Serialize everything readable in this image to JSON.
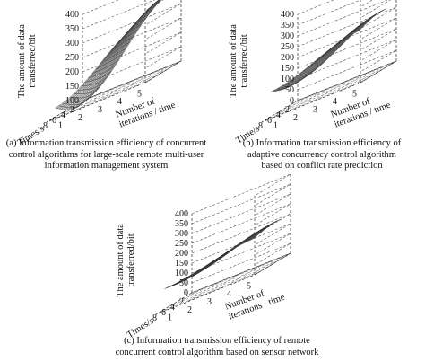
{
  "chart_data": [
    {
      "type": "surface",
      "panel_id": "a",
      "caption": [
        "(a) Information transmission efficiency of concurrent",
        "control algorithms for large-scale remote multi-user",
        "information management system"
      ],
      "zlabel": [
        "The amount of data",
        "transferred/bit"
      ],
      "xlabel": "Times/s",
      "ylabel": [
        "Number of",
        "iterations / time"
      ],
      "z_ticks": [
        100,
        150,
        200,
        250,
        300,
        350,
        400
      ],
      "x_ticks": [
        2,
        4,
        6,
        8
      ],
      "y_ticks": [
        1,
        2,
        3,
        4,
        5
      ],
      "zlim": [
        100,
        400
      ],
      "surface_range": [
        90,
        360
      ],
      "grid": "on"
    },
    {
      "type": "surface",
      "panel_id": "b",
      "caption": [
        "(b) Information transmission efficiency of",
        "adaptive concurrency control algorithm",
        "based on conflict rate prediction"
      ],
      "zlabel": [
        "The amount of data",
        "transferred/bit"
      ],
      "xlabel": "Time/s",
      "ylabel": [
        "Number of",
        "iterations / time"
      ],
      "z_ticks": [
        0,
        50,
        100,
        150,
        200,
        250,
        300,
        350,
        400
      ],
      "x_ticks": [
        2,
        4,
        6,
        8
      ],
      "y_ticks": [
        1,
        2,
        3,
        4,
        5
      ],
      "zlim": [
        0,
        400
      ],
      "surface_range": [
        90,
        270
      ],
      "grid": "on"
    },
    {
      "type": "surface",
      "panel_id": "c",
      "caption": [
        "(c) Information transmission efficiency of remote",
        "concurrent control algorithm based on sensor network"
      ],
      "zlabel": [
        "The amount of data",
        "transferred/bit"
      ],
      "xlabel": "Times/s",
      "ylabel": [
        "Number of",
        "iterations / time"
      ],
      "z_ticks": [
        0,
        50,
        100,
        150,
        200,
        250,
        300,
        350,
        400
      ],
      "x_ticks": [
        2,
        4,
        6,
        8
      ],
      "y_ticks": [
        1,
        2,
        3,
        4,
        5
      ],
      "zlim": [
        0,
        400
      ],
      "surface_range": [
        90,
        200
      ],
      "grid": "on"
    }
  ]
}
